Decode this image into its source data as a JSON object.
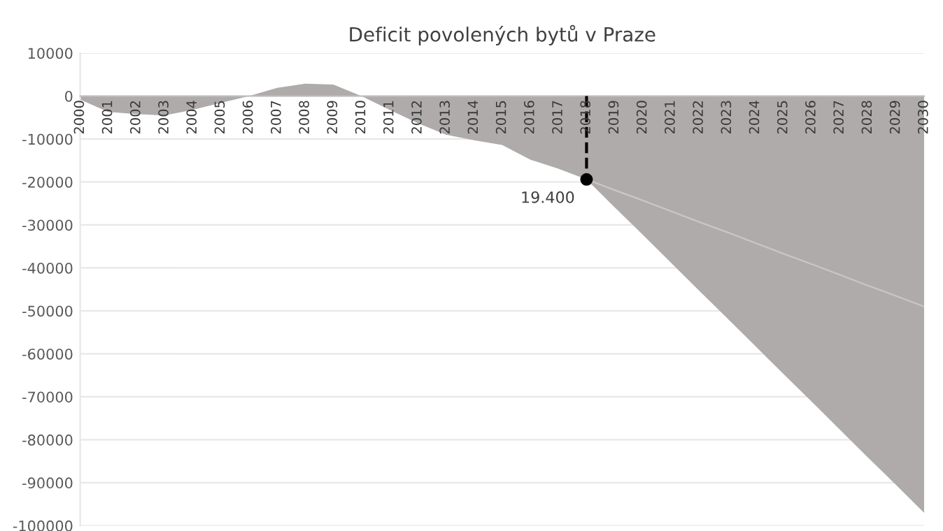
{
  "chart_data": {
    "type": "area",
    "title": "Deficit povolených bytů v Praze",
    "categories": [
      "2000",
      "2001",
      "2002",
      "2003",
      "2004",
      "2005",
      "2006",
      "2007",
      "2008",
      "2009",
      "2010",
      "2011",
      "2012",
      "2013",
      "2014",
      "2015",
      "2016",
      "2017",
      "2018",
      "2019",
      "2020",
      "2021",
      "2022",
      "2023",
      "2024",
      "2025",
      "2026",
      "2027",
      "2028",
      "2029",
      "2030"
    ],
    "series": [
      {
        "color": "#afabab",
        "values": [
          -800,
          -3700,
          -4200,
          -4500,
          -3200,
          -1600,
          0,
          1900,
          2900,
          2700,
          0,
          -3200,
          -6300,
          -9000,
          -10300,
          -11400,
          -14800,
          -16900,
          -19400,
          -25900,
          -32300,
          -38800,
          -45300,
          -51700,
          -58200,
          -64700,
          -71100,
          -77600,
          -84100,
          -90500,
          -97000
        ]
      },
      {
        "type": "line",
        "color": "#c9c7c6",
        "values": [
          null,
          null,
          null,
          null,
          null,
          null,
          null,
          null,
          null,
          null,
          null,
          null,
          null,
          null,
          null,
          null,
          null,
          null,
          -19400,
          -21900,
          -24300,
          -26800,
          -29300,
          -31700,
          -34200,
          -36700,
          -39100,
          -41600,
          -44100,
          -46500,
          -49000
        ]
      },
      {
        "type": "lollipop",
        "color": "#000000",
        "marker": "circle",
        "line_style": "dashed",
        "values": [
          null,
          null,
          null,
          null,
          null,
          null,
          null,
          null,
          null,
          null,
          null,
          null,
          null,
          null,
          null,
          null,
          null,
          null,
          -19400,
          null,
          null,
          null,
          null,
          null,
          null,
          null,
          null,
          null,
          null,
          null,
          null
        ]
      }
    ],
    "annotations": [
      {
        "text": "19.400",
        "x": "2018",
        "y": -19400
      }
    ],
    "ylim": [
      -100000,
      10000
    ],
    "yticks": [
      -100000,
      -90000,
      -80000,
      -70000,
      -60000,
      -50000,
      -40000,
      -30000,
      -20000,
      -10000,
      0,
      10000
    ],
    "grid": "y",
    "legend": false
  }
}
